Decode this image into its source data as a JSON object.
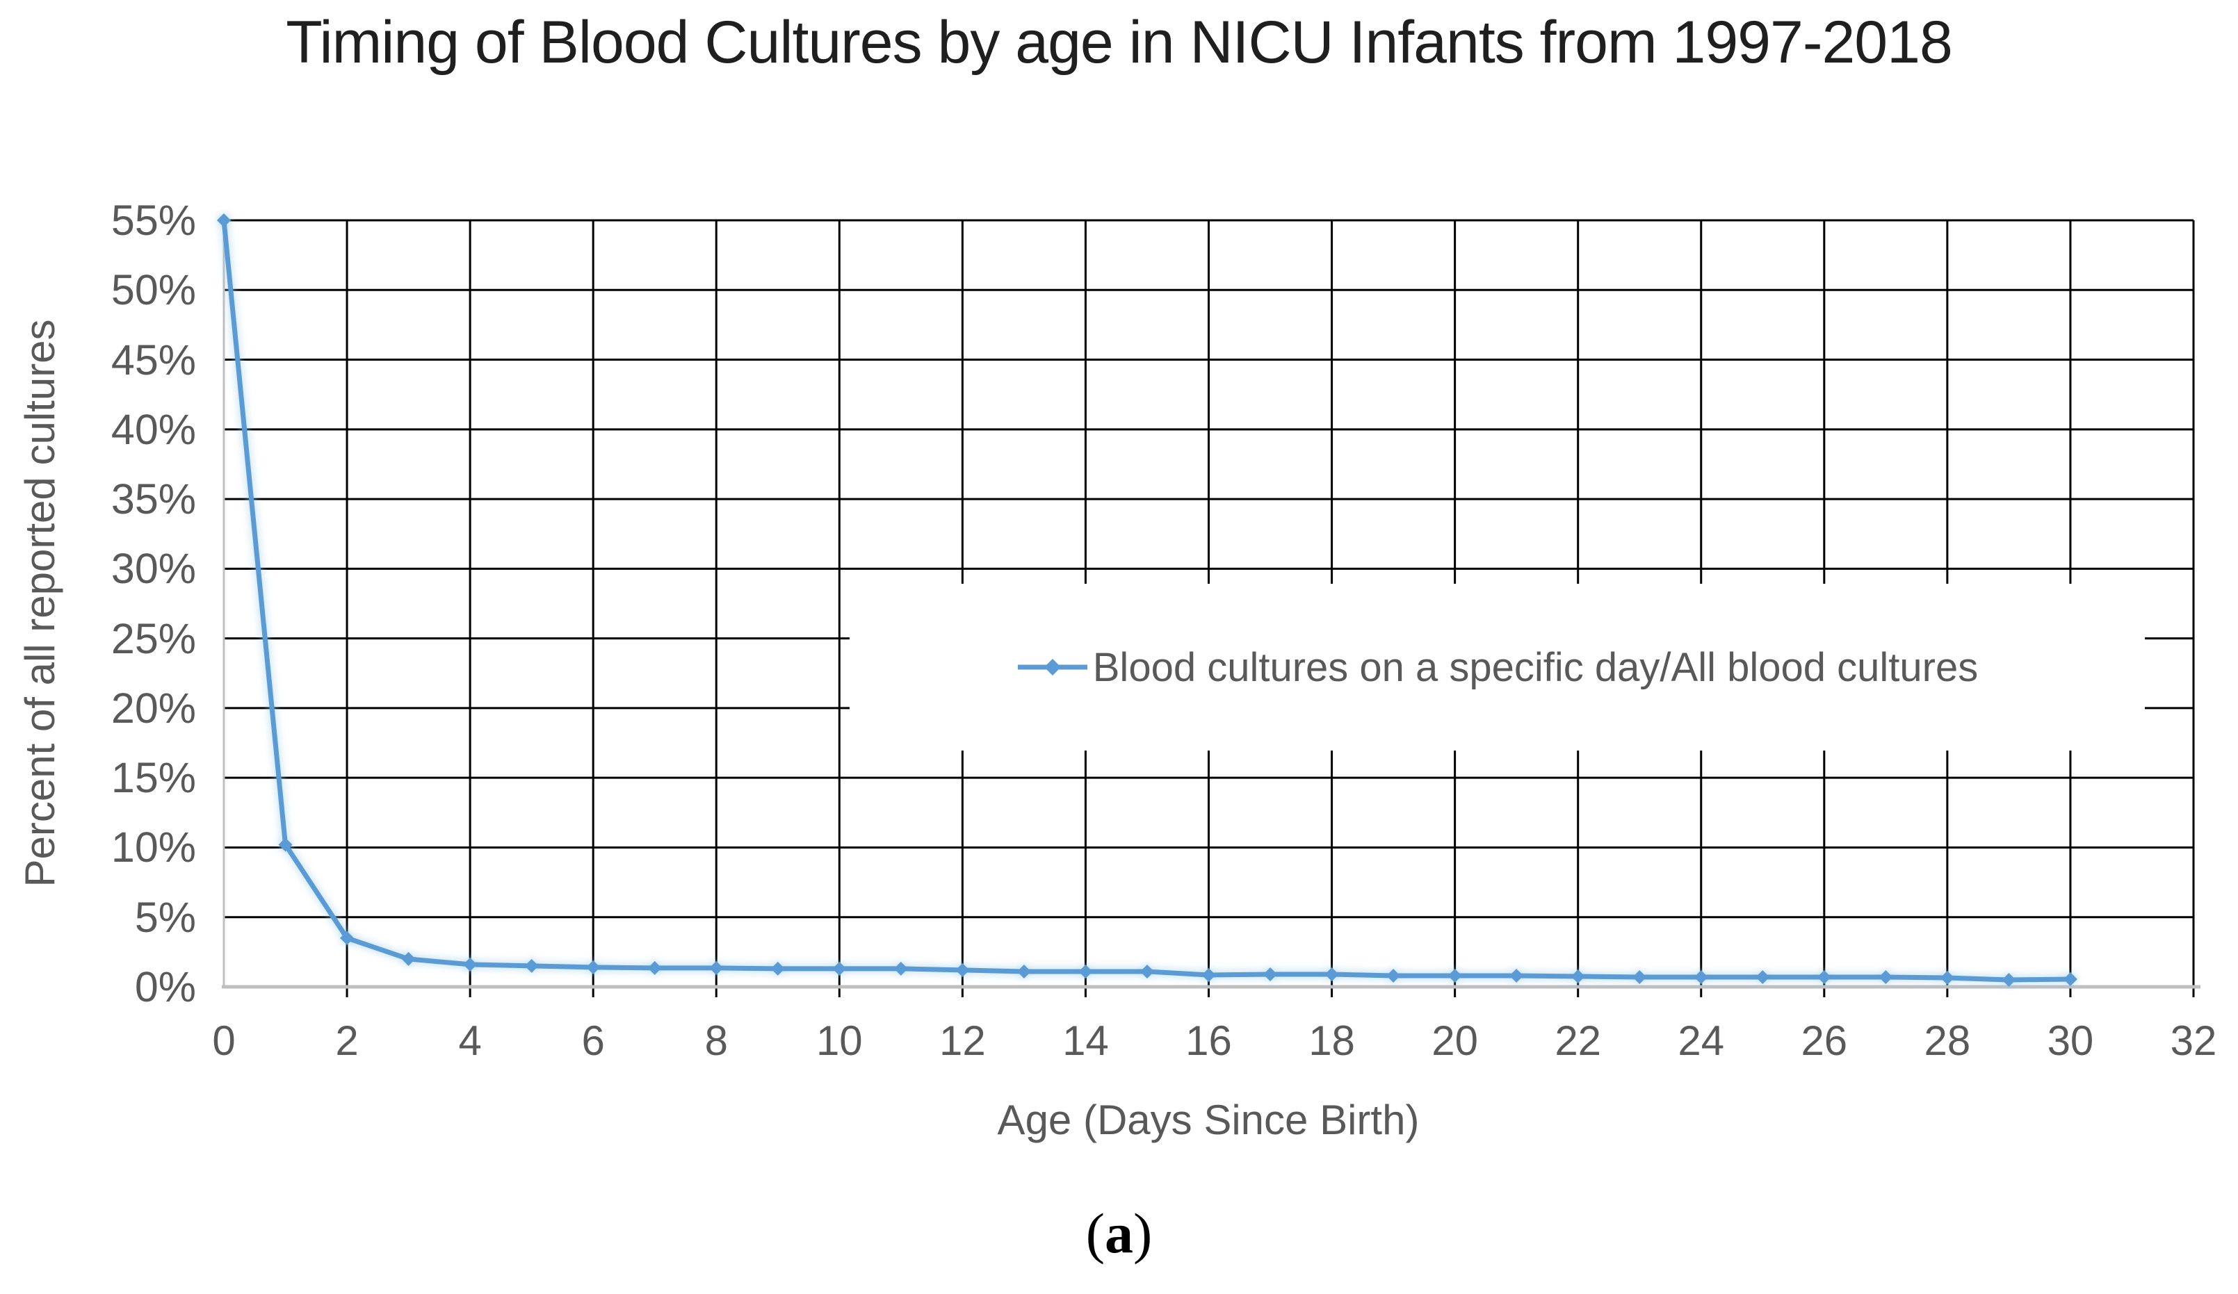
{
  "figure": {
    "caption": {
      "open": "(",
      "letter": "a",
      "close": ")"
    }
  },
  "chart_data": {
    "type": "line",
    "title": "Timing of Blood Cultures by age in NICU Infants from 1997-2018",
    "xlabel": "Age (Days Since Birth)",
    "ylabel": "Percent of all reported cultures",
    "x": [
      0,
      1,
      2,
      3,
      4,
      5,
      6,
      7,
      8,
      9,
      10,
      11,
      12,
      13,
      14,
      15,
      16,
      17,
      18,
      19,
      20,
      21,
      22,
      23,
      24,
      25,
      26,
      27,
      28,
      29,
      30
    ],
    "series": [
      {
        "name": "Blood cultures on a specific day/All blood cultures",
        "values": [
          55,
          10.2,
          3.5,
          2,
          1.6,
          1.5,
          1.4,
          1.35,
          1.35,
          1.3,
          1.3,
          1.3,
          1.2,
          1.1,
          1.1,
          1.1,
          0.85,
          0.9,
          0.9,
          0.8,
          0.8,
          0.8,
          0.75,
          0.7,
          0.7,
          0.7,
          0.7,
          0.7,
          0.65,
          0.5,
          0.55
        ]
      }
    ],
    "xlim": [
      0,
      32
    ],
    "ylim": [
      0,
      55
    ],
    "x_tick_step": 2,
    "y_tick_step": 5,
    "y_tick_suffix": "%",
    "grid": true,
    "legend": {
      "position": "inside-center-right"
    },
    "colors": {
      "line": "#5B9BD5",
      "gridline": "#000000",
      "axis": "#BFBFBF",
      "tick_labels": "#595959",
      "title": "#1f1f1f",
      "legend_text": "#595959"
    }
  }
}
